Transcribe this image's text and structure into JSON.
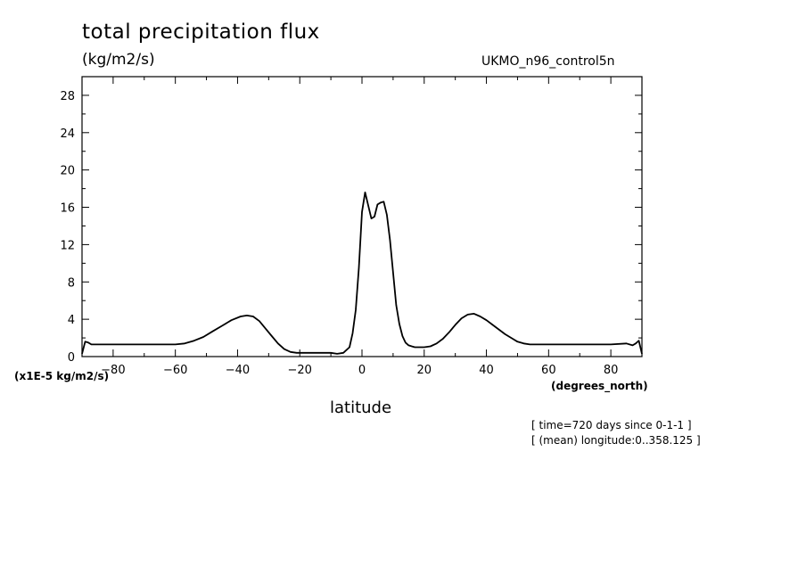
{
  "chart_data": {
    "type": "line",
    "title": "total precipitation flux",
    "units": "(kg/m2/s)",
    "dataset": "UKMO_n96_control5n",
    "scale_note": "(x1E-5 kg/m2/s)",
    "xlabel": "latitude",
    "xunits": "(degrees_north)",
    "annotations": [
      "[ time=720 days since 0-1-1 ]",
      "[ (mean) longitude:0..358.125 ]"
    ],
    "xlim": [
      -90,
      90
    ],
    "ylim": [
      0,
      30
    ],
    "xticks": [
      -80,
      -60,
      -40,
      -20,
      0,
      20,
      40,
      60,
      80
    ],
    "yticks": [
      0,
      4,
      8,
      12,
      16,
      20,
      24,
      28
    ],
    "grid": false,
    "series": [
      {
        "x": [
          -90,
          -89,
          -88,
          -87,
          -85,
          -80,
          -75,
          -70,
          -65,
          -60,
          -57,
          -54,
          -51,
          -48,
          -45,
          -42,
          -39,
          -37,
          -35,
          -33,
          -31,
          -29,
          -27,
          -25,
          -23,
          -21,
          -19,
          -15,
          -10,
          -8,
          -6,
          -4,
          -3,
          -2,
          -1,
          0,
          1,
          2,
          3,
          4,
          5,
          6,
          7,
          8,
          9,
          10,
          11,
          12,
          13,
          14,
          15,
          16,
          17,
          18,
          20,
          22,
          24,
          26,
          28,
          30,
          32,
          34,
          36,
          38,
          40,
          42,
          44,
          46,
          48,
          50,
          52,
          54,
          56,
          58,
          60,
          65,
          70,
          75,
          80,
          85,
          87,
          88,
          89,
          90
        ],
        "y": [
          0.3,
          1.6,
          1.5,
          1.3,
          1.3,
          1.3,
          1.3,
          1.3,
          1.3,
          1.3,
          1.4,
          1.7,
          2.1,
          2.7,
          3.3,
          3.9,
          4.3,
          4.4,
          4.3,
          3.8,
          3.0,
          2.2,
          1.4,
          0.8,
          0.5,
          0.4,
          0.4,
          0.4,
          0.4,
          0.3,
          0.4,
          1.0,
          2.5,
          5.0,
          9.5,
          15.5,
          17.6,
          16.2,
          14.8,
          15.0,
          16.3,
          16.5,
          16.6,
          15.2,
          12.5,
          9.0,
          5.5,
          3.5,
          2.2,
          1.5,
          1.2,
          1.1,
          1.0,
          1.0,
          1.0,
          1.1,
          1.4,
          1.9,
          2.6,
          3.4,
          4.1,
          4.5,
          4.6,
          4.3,
          3.9,
          3.4,
          2.9,
          2.4,
          2.0,
          1.6,
          1.4,
          1.3,
          1.3,
          1.3,
          1.3,
          1.3,
          1.3,
          1.3,
          1.3,
          1.4,
          1.2,
          1.4,
          1.7,
          0.3
        ]
      }
    ]
  }
}
